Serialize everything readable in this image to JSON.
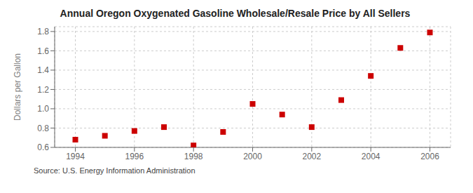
{
  "chart_data": {
    "type": "scatter",
    "title": "Annual Oregon Oxygenated Gasoline Wholesale/Resale Price by All Sellers",
    "y_label": "Dollars per Gallon",
    "annotations": [
      "Source: U.S. Energy Information Administration"
    ],
    "x": [
      1994,
      1995,
      1996,
      1997,
      1998,
      1999,
      2000,
      2001,
      2002,
      2003,
      2004,
      2005,
      2006
    ],
    "values": [
      0.68,
      0.72,
      0.77,
      0.81,
      0.62,
      0.76,
      1.05,
      0.94,
      0.81,
      1.09,
      1.34,
      1.63,
      1.79
    ],
    "color": "#cc0000",
    "marker": "square",
    "xlim": [
      1993.3,
      2006.7
    ],
    "ylim": [
      0.6,
      1.85
    ],
    "xticks": [
      1994,
      1996,
      1998,
      2000,
      2002,
      2004,
      2006
    ],
    "yticks": [
      0.6,
      0.8,
      {
        "value": 1,
        "label": "1.0"
      },
      1.2,
      1.4,
      1.6,
      1.8
    ],
    "grid": true
  }
}
